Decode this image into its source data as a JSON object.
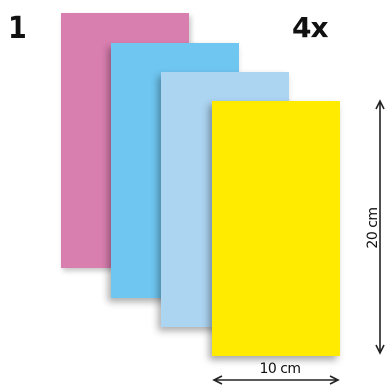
{
  "step_number": "1",
  "quantity": "4x",
  "dimensions": {
    "width_label": "10 cm",
    "height_label": "20 cm"
  },
  "sheets": [
    {
      "name": "pink-sheet",
      "color": "#d97fb0"
    },
    {
      "name": "blue-sheet",
      "color": "#6ec6f1"
    },
    {
      "name": "light-blue-sheet",
      "color": "#acd5f2"
    },
    {
      "name": "yellow-sheet",
      "color": "#ffeb00"
    }
  ],
  "colors": {
    "text": "#111111",
    "arrow": "#222222"
  }
}
